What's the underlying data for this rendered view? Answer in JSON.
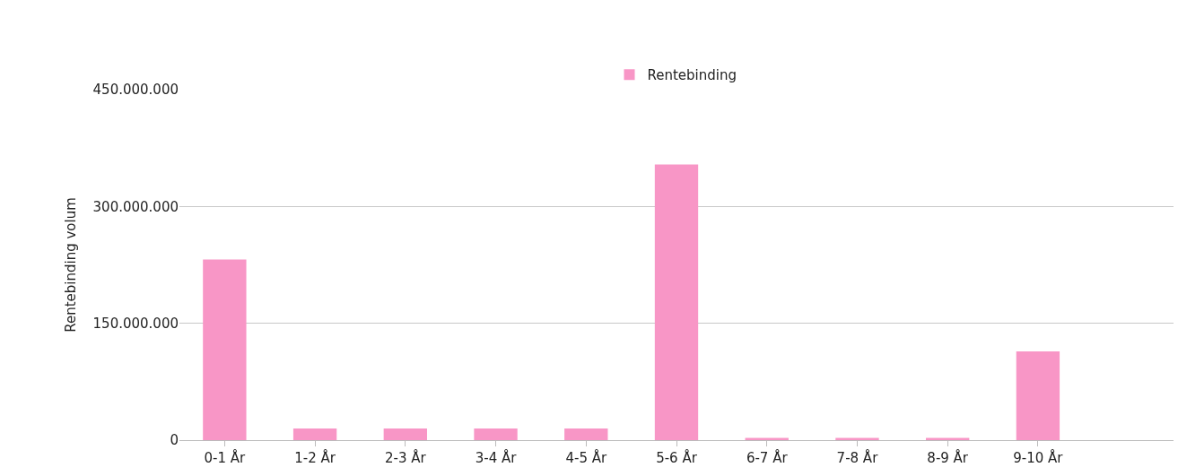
{
  "chart_data": {
    "type": "bar",
    "ylabel": "Rentebinding volum",
    "categories": [
      "0-1 År",
      "1-2 År",
      "2-3 År",
      "3-4 År",
      "4-5 År",
      "5-6 År",
      "6-7 År",
      "7-8 År",
      "8-9 År",
      "9-10 År",
      null
    ],
    "series": [
      {
        "name": "Rentebinding",
        "color": "#f896c6",
        "values": [
          232000000,
          15000000,
          15000000,
          15000000,
          15000000,
          354000000,
          3000000,
          3000000,
          3000000,
          114000000,
          null
        ]
      }
    ],
    "ylim": [
      0,
      450000000
    ],
    "yticks": [
      {
        "value": 0,
        "label": "0"
      },
      {
        "value": 150000000,
        "label": "150.000.000"
      },
      {
        "value": 300000000,
        "label": "300.000.000"
      },
      {
        "value": 450000000,
        "label": "450.000.000"
      }
    ],
    "grid": "y",
    "legend": "top"
  }
}
